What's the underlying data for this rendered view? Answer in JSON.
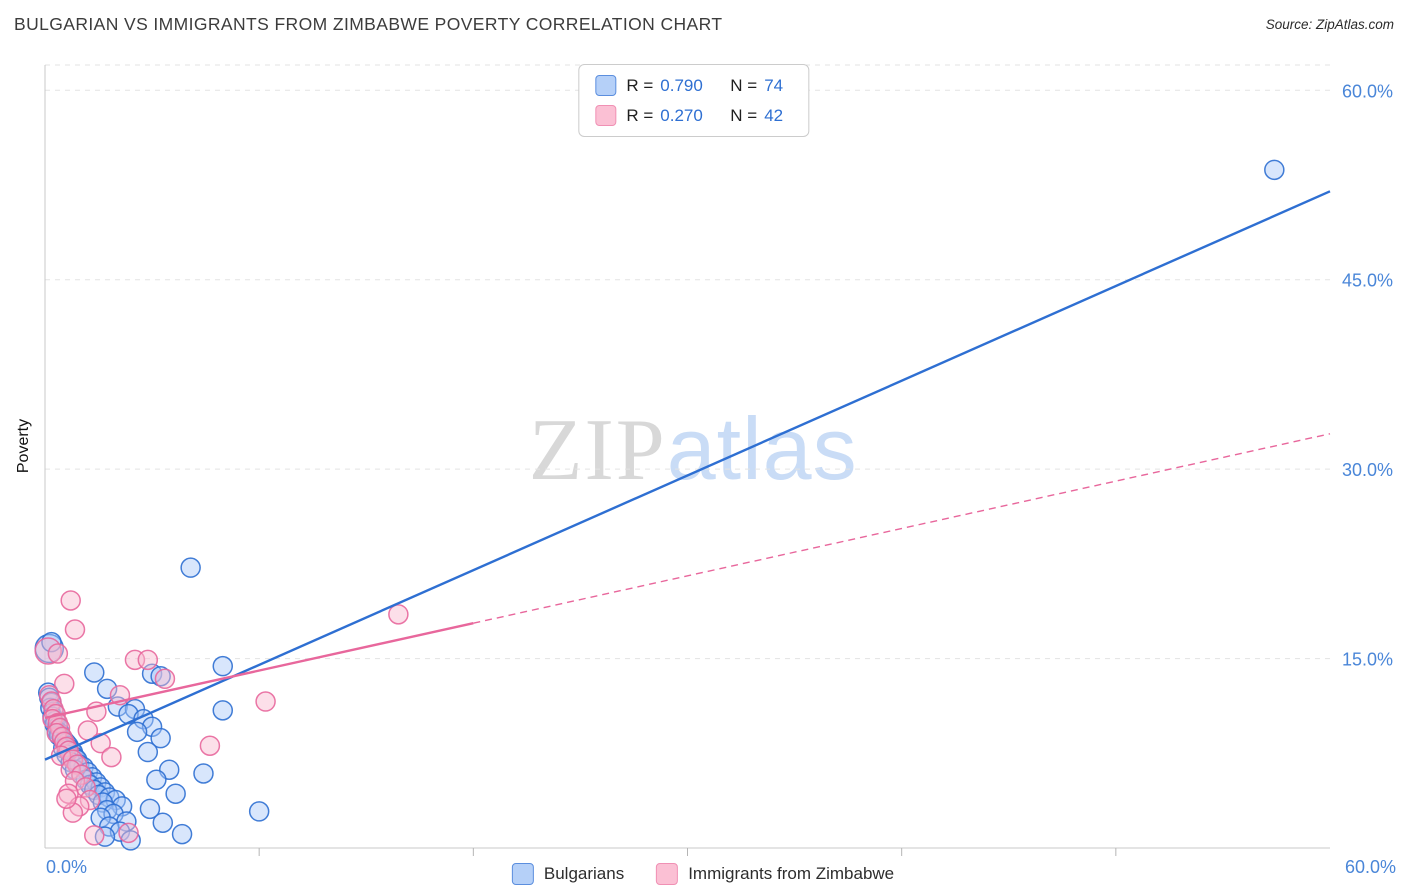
{
  "header": {
    "title": "BULGARIAN VS IMMIGRANTS FROM ZIMBABWE POVERTY CORRELATION CHART",
    "source": "Source: ZipAtlas.com"
  },
  "watermark": {
    "zip": "ZIP",
    "atlas": "atlas"
  },
  "legend_box": {
    "rows": [
      {
        "r_label": "R =",
        "r_value": "0.790",
        "n_label": "N =",
        "n_value": "74"
      },
      {
        "r_label": "R =",
        "r_value": "0.270",
        "n_label": "N =",
        "n_value": "42"
      }
    ]
  },
  "axes": {
    "y_label": "Poverty",
    "x_min_label": "0.0%",
    "x_max_label": "60.0%",
    "tick_color": "#4a86d8"
  },
  "bottom_legend": {
    "items": [
      {
        "label": "Bulgarians"
      },
      {
        "label": "Immigrants from Zimbabwe"
      }
    ]
  },
  "chart_data": {
    "type": "scatter",
    "title": "Bulgarian vs Immigrants from Zimbabwe Poverty Correlation",
    "xlabel": "",
    "ylabel": "Poverty",
    "xlim": [
      0,
      60
    ],
    "ylim": [
      0,
      62
    ],
    "grid": true,
    "legend_position": "top-center",
    "x_ticks": [
      10,
      20,
      30,
      40,
      50
    ],
    "y_ticks": [
      {
        "value": 60,
        "label": "60.0%"
      },
      {
        "value": 45,
        "label": "45.0%"
      },
      {
        "value": 30,
        "label": "30.0%"
      },
      {
        "value": 15,
        "label": "15.0%"
      }
    ],
    "series": [
      {
        "name": "Bulgarians",
        "R": 0.79,
        "N": 74,
        "stroke": "#2e6fd2",
        "fill": "#a8c8f8",
        "point_name": "bulgarians-point",
        "points": [
          [
            0.2,
            15.8,
            14
          ],
          [
            0.3,
            16.3
          ],
          [
            6.8,
            22.2
          ],
          [
            57.4,
            53.7
          ],
          [
            8.3,
            14.4
          ],
          [
            5.0,
            13.8
          ],
          [
            5.4,
            13.6
          ],
          [
            8.3,
            10.9
          ],
          [
            2.3,
            13.9
          ],
          [
            2.9,
            12.6
          ],
          [
            3.4,
            11.2
          ],
          [
            4.2,
            11.0
          ],
          [
            3.9,
            10.6
          ],
          [
            4.6,
            10.2
          ],
          [
            5.0,
            9.6
          ],
          [
            4.3,
            9.2
          ],
          [
            5.4,
            8.7
          ],
          [
            4.8,
            7.6
          ],
          [
            7.4,
            5.9
          ],
          [
            5.8,
            6.2
          ],
          [
            5.2,
            5.4
          ],
          [
            6.1,
            4.3
          ],
          [
            4.9,
            3.1
          ],
          [
            5.5,
            2.0
          ],
          [
            6.4,
            1.1
          ],
          [
            10.0,
            2.9
          ],
          [
            0.15,
            12.3
          ],
          [
            0.2,
            11.9
          ],
          [
            0.3,
            11.5
          ],
          [
            0.25,
            11.1
          ],
          [
            0.4,
            10.8
          ],
          [
            0.35,
            10.4
          ],
          [
            0.5,
            10.1
          ],
          [
            0.45,
            9.8
          ],
          [
            0.6,
            9.6
          ],
          [
            0.55,
            9.3
          ],
          [
            0.7,
            9.1
          ],
          [
            0.65,
            8.9
          ],
          [
            0.8,
            8.7
          ],
          [
            0.9,
            8.5
          ],
          [
            1.0,
            8.3
          ],
          [
            1.1,
            8.1
          ],
          [
            0.85,
            7.9
          ],
          [
            1.2,
            7.8
          ],
          [
            1.3,
            7.6
          ],
          [
            1.0,
            7.4
          ],
          [
            1.4,
            7.2
          ],
          [
            1.5,
            7.0
          ],
          [
            1.2,
            6.8
          ],
          [
            1.6,
            6.6
          ],
          [
            1.8,
            6.4
          ],
          [
            1.4,
            6.2
          ],
          [
            2.0,
            6.0
          ],
          [
            1.7,
            5.8
          ],
          [
            2.2,
            5.6
          ],
          [
            1.9,
            5.4
          ],
          [
            2.4,
            5.2
          ],
          [
            2.1,
            5.0
          ],
          [
            2.6,
            4.8
          ],
          [
            2.3,
            4.6
          ],
          [
            2.8,
            4.4
          ],
          [
            2.5,
            4.2
          ],
          [
            3.0,
            4.0
          ],
          [
            3.3,
            3.8
          ],
          [
            2.7,
            3.6
          ],
          [
            3.6,
            3.3
          ],
          [
            2.9,
            3.0
          ],
          [
            3.2,
            2.7
          ],
          [
            2.6,
            2.4
          ],
          [
            3.8,
            2.1
          ],
          [
            3.0,
            1.7
          ],
          [
            3.5,
            1.3
          ],
          [
            2.8,
            0.9
          ],
          [
            4.0,
            0.6
          ]
        ],
        "trendlines": [
          {
            "x1": 0,
            "y1": 7.0,
            "x2": 60,
            "y2": 52.0,
            "dash": false
          }
        ]
      },
      {
        "name": "Immigrants from Zimbabwe",
        "R": 0.27,
        "N": 42,
        "stroke": "#e8679c",
        "fill": "#f9b8ce",
        "point_name": "zimbabwe-point",
        "points": [
          [
            0.15,
            15.6,
            13
          ],
          [
            1.2,
            19.6
          ],
          [
            1.4,
            17.3
          ],
          [
            0.6,
            15.4
          ],
          [
            16.5,
            18.5
          ],
          [
            4.2,
            14.9
          ],
          [
            4.8,
            14.9
          ],
          [
            5.6,
            13.4
          ],
          [
            3.5,
            12.1
          ],
          [
            10.3,
            11.6
          ],
          [
            7.7,
            8.1
          ],
          [
            0.9,
            13.0
          ],
          [
            2.4,
            10.8
          ],
          [
            0.2,
            12.1
          ],
          [
            0.3,
            11.6
          ],
          [
            0.4,
            11.0
          ],
          [
            0.5,
            10.6
          ],
          [
            0.35,
            10.2
          ],
          [
            0.6,
            9.9
          ],
          [
            0.7,
            9.5
          ],
          [
            0.55,
            9.1
          ],
          [
            0.8,
            8.8
          ],
          [
            0.9,
            8.4
          ],
          [
            1.0,
            8.0
          ],
          [
            1.1,
            7.7
          ],
          [
            0.75,
            7.3
          ],
          [
            1.3,
            7.0
          ],
          [
            1.5,
            6.6
          ],
          [
            1.2,
            6.2
          ],
          [
            1.7,
            5.8
          ],
          [
            1.4,
            5.3
          ],
          [
            1.9,
            4.8
          ],
          [
            1.1,
            4.3
          ],
          [
            2.1,
            3.8
          ],
          [
            1.6,
            3.3
          ],
          [
            1.3,
            2.8
          ],
          [
            2.3,
            1.0
          ],
          [
            3.9,
            1.2
          ],
          [
            1.0,
            3.9
          ],
          [
            2.0,
            9.3
          ],
          [
            2.6,
            8.3
          ],
          [
            3.1,
            7.2
          ]
        ],
        "trendlines": [
          {
            "x1": 0,
            "y1": 10.3,
            "x2": 20,
            "y2": 17.8,
            "dash": false
          },
          {
            "x1": 20,
            "y1": 17.8,
            "x2": 60,
            "y2": 32.8,
            "dash": true
          }
        ]
      }
    ]
  }
}
